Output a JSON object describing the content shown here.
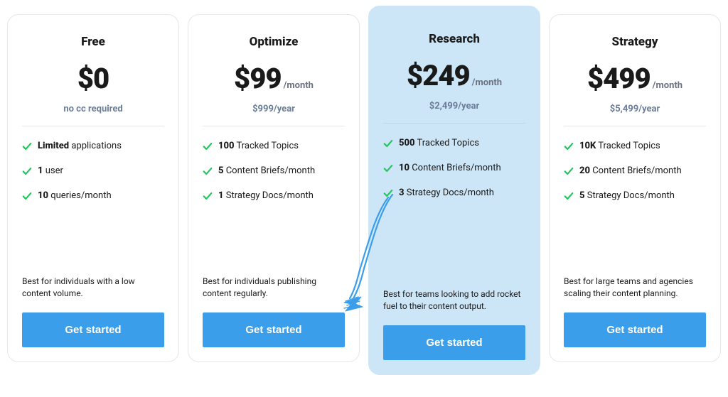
{
  "colors": {
    "card_bg": "#ffffff",
    "card_border": "#e5e7eb",
    "highlight_bg": "#cde6f7",
    "text_primary": "#1a1a1a",
    "text_muted": "#6b7280",
    "text_subtext": "#6b7d98",
    "check_color": "#22c55e",
    "button_bg": "#3b9eeb",
    "button_text": "#ffffff",
    "arrow_color": "#3b9eeb"
  },
  "plans": [
    {
      "name": "Free",
      "price": "$0",
      "period": "",
      "subtext": "no cc required",
      "features": [
        {
          "bold": "Limited",
          "rest": " applications"
        },
        {
          "bold": "1",
          "rest": " user"
        },
        {
          "bold": "10",
          "rest": " queries/month"
        }
      ],
      "description": "Best for individuals with a low content volume.",
      "cta": "Get started",
      "highlighted": false
    },
    {
      "name": "Optimize",
      "price": "$99",
      "period": "/month",
      "subtext": "$999/year",
      "features": [
        {
          "bold": "100",
          "rest": " Tracked Topics"
        },
        {
          "bold": "5",
          "rest": " Content Briefs/month"
        },
        {
          "bold": "1",
          "rest": " Strategy Docs/month"
        }
      ],
      "description": "Best for individuals publishing content regularly.",
      "cta": "Get started",
      "highlighted": false
    },
    {
      "name": "Research",
      "price": "$249",
      "period": "/month",
      "subtext": "$2,499/year",
      "features": [
        {
          "bold": "500",
          "rest": " Tracked Topics"
        },
        {
          "bold": "10",
          "rest": " Content Briefs/month"
        },
        {
          "bold": "3",
          "rest": " Strategy Docs/month"
        }
      ],
      "description": "Best for teams looking to add rocket fuel to their content output.",
      "cta": "Get started",
      "highlighted": true
    },
    {
      "name": "Strategy",
      "price": "$499",
      "period": "/month",
      "subtext": "$5,499/year",
      "features": [
        {
          "bold": "10K",
          "rest": " Tracked Topics"
        },
        {
          "bold": "20",
          "rest": " Content Briefs/month"
        },
        {
          "bold": "5",
          "rest": " Strategy Docs/month"
        }
      ],
      "description": "Best for large teams and agencies scaling their content planning.",
      "cta": "Get started",
      "highlighted": false
    }
  ]
}
